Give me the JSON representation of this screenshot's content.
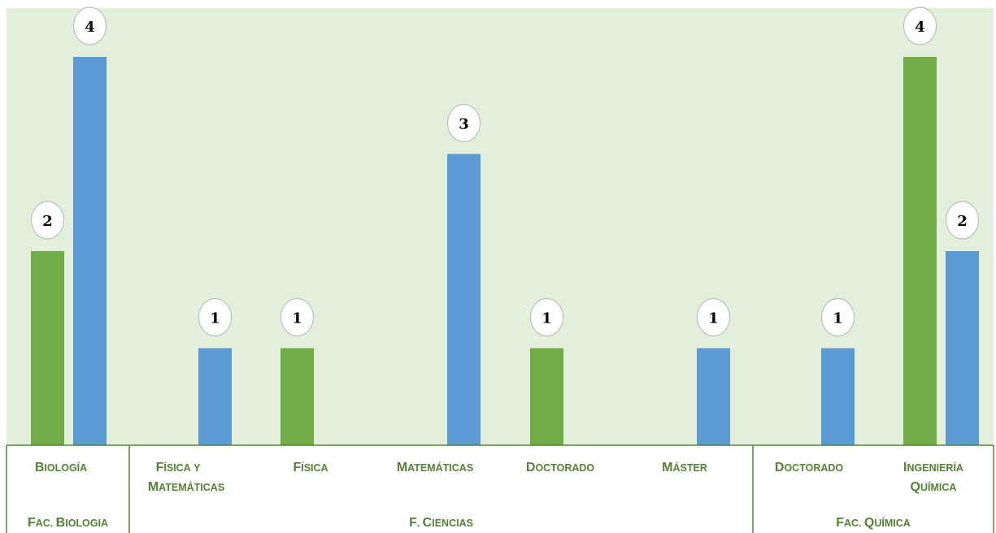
{
  "colors": {
    "plot_background": "#e2efda",
    "green_series": "#70ad47",
    "blue_series": "#5b9bd5",
    "label_text": "#548235",
    "axis_line": "#548235",
    "bubble_fill": "#ffffff",
    "bubble_stroke": "#bfbfbf"
  },
  "chart_data": {
    "type": "bar",
    "title": "",
    "xlabel": "",
    "ylabel": "",
    "ylim": [
      0,
      4.3
    ],
    "grid": false,
    "legend": "none",
    "categories": [
      {
        "label": "BIOLOGÍA",
        "group": "FAC. BIOLOGIA"
      },
      {
        "label": "FÍSICA Y MATEMÁTICAS",
        "group": "F. CIENCIAS"
      },
      {
        "label": "FÍSICA",
        "group": "F. CIENCIAS"
      },
      {
        "label": "MATEMÁTICAS",
        "group": "F. CIENCIAS"
      },
      {
        "label": "DOCTORADO",
        "group": "F. CIENCIAS"
      },
      {
        "label": "MÁSTER",
        "group": "F. CIENCIAS"
      },
      {
        "label": "DOCTORADO",
        "group": "FAC. QUÍMICA"
      },
      {
        "label": "INGENIERÍA QUÍMICA",
        "group": "FAC. QUÍMICA"
      }
    ],
    "groups": [
      "FAC. BIOLOGIA",
      "F. CIENCIAS",
      "FAC. QUÍMICA"
    ],
    "series": [
      {
        "color": "green_series",
        "values": [
          2,
          null,
          1,
          null,
          1,
          null,
          null,
          4
        ]
      },
      {
        "color": "blue_series",
        "values": [
          4,
          1,
          null,
          3,
          null,
          1,
          1,
          2
        ]
      }
    ],
    "data_labels": true
  }
}
